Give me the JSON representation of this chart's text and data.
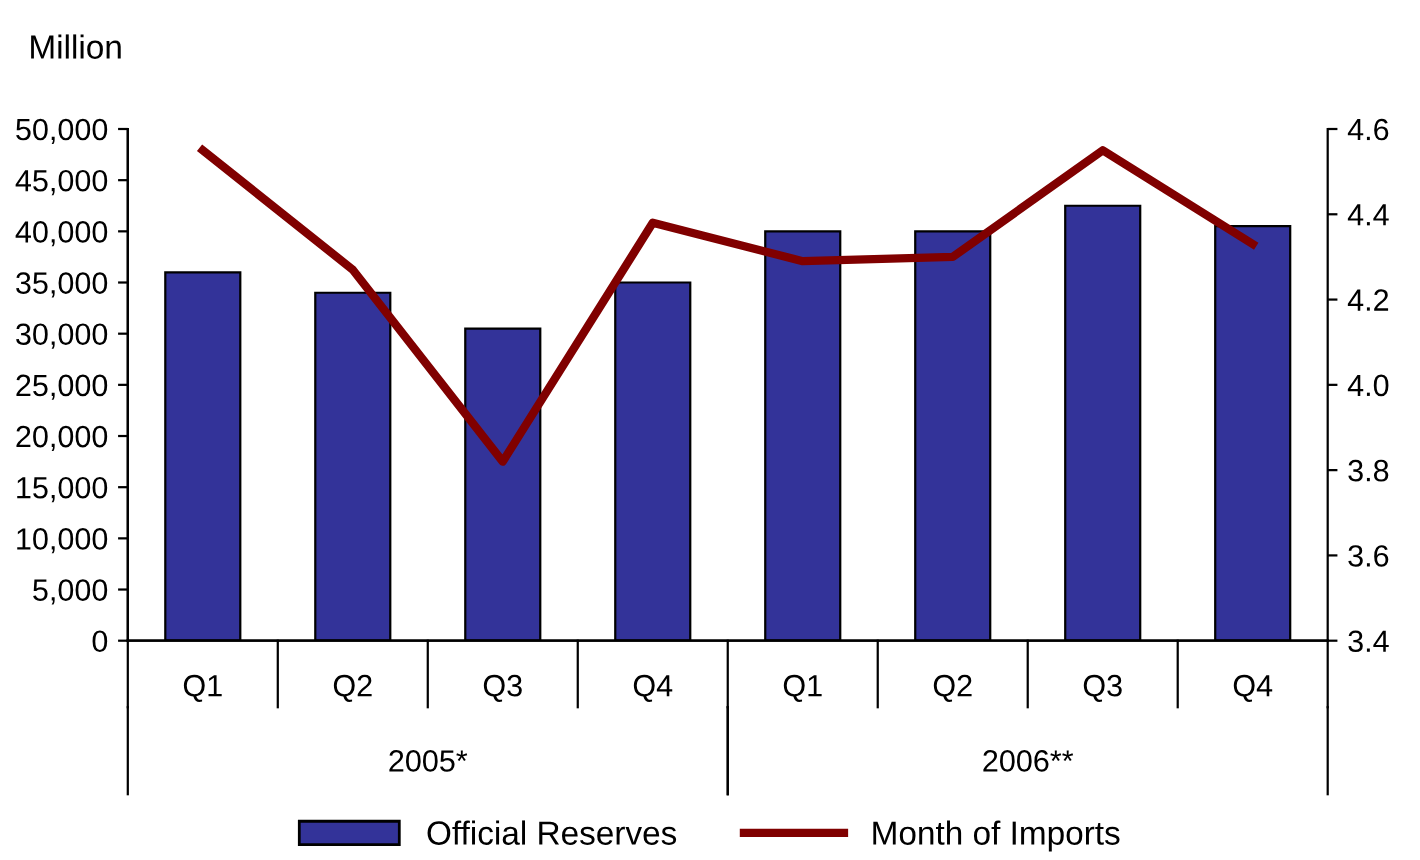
{
  "chart_data": {
    "type": "bar",
    "ylabel": "Million",
    "categories": [
      "Q1",
      "Q2",
      "Q3",
      "Q4",
      "Q1",
      "Q2",
      "Q3",
      "Q4"
    ],
    "annotations": [
      "2005*",
      "2006**"
    ],
    "series": [
      {
        "name": "Official Reserves",
        "color": "#333399",
        "values": [
          36000,
          34000,
          30500,
          35000,
          40000,
          40000,
          42500,
          40500
        ]
      },
      {
        "name": "Month of Imports",
        "type": "line",
        "axis": "y2",
        "color": "#800000",
        "values": [
          4.55,
          4.27,
          3.82,
          4.38,
          4.29,
          4.3,
          4.55,
          4.33
        ]
      }
    ],
    "ylim": [
      0,
      50000
    ],
    "yticks": [
      {
        "value": 0,
        "label": "0"
      },
      {
        "value": 5000,
        "label": "5,000"
      },
      {
        "value": 10000,
        "label": "10,000"
      },
      {
        "value": 15000,
        "label": "15,000"
      },
      {
        "value": 20000,
        "label": "20,000"
      },
      {
        "value": 25000,
        "label": "25,000"
      },
      {
        "value": 30000,
        "label": "30,000"
      },
      {
        "value": 35000,
        "label": "35,000"
      },
      {
        "value": 40000,
        "label": "40,000"
      },
      {
        "value": 45000,
        "label": "45,000"
      },
      {
        "value": 50000,
        "label": "50,000"
      }
    ],
    "y2lim": [
      3.4,
      4.6
    ],
    "y2ticks": [
      {
        "value": 3.4,
        "label": "3.4"
      },
      {
        "value": 3.6,
        "label": "3.6"
      },
      {
        "value": 3.8,
        "label": "3.8"
      },
      {
        "value": 4.0,
        "label": "4.0"
      },
      {
        "value": 4.2,
        "label": "4.2"
      },
      {
        "value": 4.4,
        "label": "4.4"
      },
      {
        "value": 4.6,
        "label": "4.6"
      }
    ],
    "legend": "bottom",
    "grid": false,
    "marker": "none",
    "line_style": "solid"
  }
}
